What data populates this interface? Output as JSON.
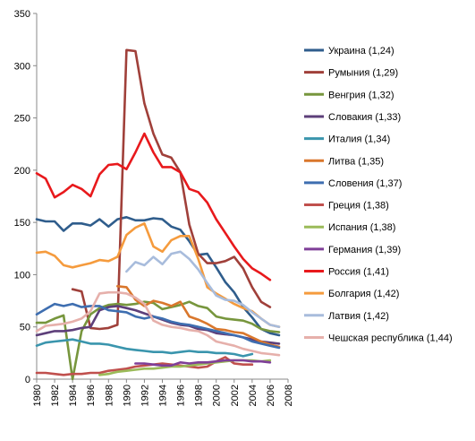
{
  "chart_data": {
    "type": "line",
    "title": "",
    "xlabel": "",
    "ylabel": "",
    "xlim": [
      1980,
      2008
    ],
    "ylim": [
      0,
      350
    ],
    "x_ticks": [
      "1980",
      "1982",
      "1984",
      "1986",
      "1988",
      "1990",
      "1992",
      "1994",
      "1996",
      "1998",
      "2000",
      "2002",
      "2004",
      "2006",
      "2008"
    ],
    "y_ticks": [
      "0",
      "50",
      "100",
      "150",
      "200",
      "250",
      "300",
      "350"
    ],
    "grid": false,
    "legend_position": "right",
    "series": [
      {
        "name": "Украина (1,24)",
        "color": "#2f5d8c",
        "x": [
          1980,
          1981,
          1982,
          1983,
          1984,
          1985,
          1986,
          1987,
          1988,
          1989,
          1990,
          1991,
          1992,
          1993,
          1994,
          1995,
          1996,
          1997,
          1998,
          1999,
          2000,
          2001,
          2002,
          2003,
          2004,
          2005,
          2006,
          2007
        ],
        "y": [
          153,
          151,
          151,
          142,
          149,
          149,
          147,
          153,
          146,
          153,
          155,
          152,
          152,
          154,
          153,
          146,
          143,
          132,
          119,
          120,
          107,
          93,
          83,
          69,
          59,
          48,
          44,
          42
        ]
      },
      {
        "name": "Румыния (1,29)",
        "color": "#a0403a",
        "x": [
          1984,
          1985,
          1986,
          1987,
          1988,
          1989,
          1990,
          1991,
          1992,
          1993,
          1994,
          1995,
          1996,
          1997,
          1998,
          1999,
          2000,
          2001,
          2002,
          2003,
          2004,
          2005,
          2006,
          2007
        ],
        "y": [
          86,
          84,
          49,
          48,
          49,
          52,
          315,
          314,
          264,
          235,
          215,
          212,
          198,
          148,
          120,
          111,
          111,
          113,
          117,
          106,
          88,
          74,
          69,
          null
        ]
      },
      {
        "name": "Венгрия (1,32)",
        "color": "#77963d",
        "x": [
          1980,
          1981,
          1982,
          1983,
          1984,
          1985,
          1986,
          1987,
          1988,
          1989,
          1990,
          1991,
          1992,
          1993,
          1994,
          1995,
          1996,
          1997,
          1998,
          1999,
          2000,
          2001,
          2002,
          2003,
          2004,
          2005,
          2006,
          2007
        ],
        "y": [
          54,
          54,
          58,
          61,
          0,
          46,
          62,
          68,
          71,
          72,
          71,
          72,
          74,
          73,
          67,
          69,
          71,
          74,
          70,
          68,
          60,
          58,
          57,
          56,
          53,
          48,
          46,
          45
        ]
      },
      {
        "name": "Словакия (1,33)",
        "color": "#5d3f7a",
        "x": [
          1980,
          1981,
          1982,
          1983,
          1984,
          1985,
          1986,
          1987,
          1988,
          1989,
          1990,
          1991,
          1992,
          1993,
          1994,
          1995,
          1996,
          1997,
          1998,
          1999,
          2000,
          2001,
          2002,
          2003,
          2004,
          2005,
          2006,
          2007
        ],
        "y": [
          42,
          44,
          46,
          46,
          47,
          49,
          50,
          66,
          69,
          70,
          68,
          66,
          63,
          60,
          57,
          54,
          52,
          51,
          48,
          47,
          44,
          43,
          42,
          40,
          38,
          36,
          35,
          34
        ]
      },
      {
        "name": "Италия (1,34)",
        "color": "#3a95ad",
        "x": [
          1980,
          1981,
          1982,
          1983,
          1984,
          1985,
          1986,
          1987,
          1988,
          1989,
          1990,
          1991,
          1992,
          1993,
          1994,
          1995,
          1996,
          1997,
          1998,
          1999,
          2000,
          2001,
          2002,
          2003,
          2004
        ],
        "y": [
          32,
          35,
          36,
          37,
          38,
          36,
          34,
          34,
          33,
          31,
          29,
          28,
          27,
          26,
          26,
          25,
          26,
          27,
          26,
          26,
          25,
          25,
          24,
          22,
          24
        ]
      },
      {
        "name": "Литва (1,35)",
        "color": "#d9772c",
        "x": [
          1989,
          1990,
          1991,
          1992,
          1993,
          1994,
          1995,
          1996,
          1997,
          1998,
          1999,
          2000,
          2001,
          2002,
          2003,
          2004,
          2005,
          2006,
          2007
        ],
        "y": [
          89,
          88,
          76,
          70,
          75,
          73,
          70,
          74,
          60,
          57,
          53,
          48,
          47,
          45,
          44,
          40,
          36,
          33,
          31
        ]
      },
      {
        "name": "Словения (1,37)",
        "color": "#3e6eb0",
        "x": [
          1980,
          1981,
          1982,
          1983,
          1984,
          1985,
          1986,
          1987,
          1988,
          1989,
          1990,
          1991,
          1992,
          1993,
          1994,
          1995,
          1996,
          1997,
          1998,
          1999,
          2000,
          2001,
          2002,
          2003,
          2004,
          2005,
          2006,
          2007
        ],
        "y": [
          62,
          67,
          72,
          70,
          72,
          69,
          70,
          70,
          66,
          65,
          64,
          60,
          58,
          60,
          58,
          55,
          53,
          52,
          50,
          48,
          46,
          44,
          42,
          40,
          36,
          34,
          32,
          30
        ]
      },
      {
        "name": "Греция (1,38)",
        "color": "#c0504d",
        "x": [
          1980,
          1981,
          1982,
          1983,
          1984,
          1985,
          1986,
          1987,
          1988,
          1989,
          1990,
          1991,
          1992,
          1993,
          1994,
          1995,
          1996,
          1997,
          1998,
          1999,
          2000,
          2001,
          2002,
          2003,
          2004
        ],
        "y": [
          6,
          6,
          5,
          4,
          5,
          5,
          6,
          6,
          8,
          9,
          10,
          12,
          13,
          14,
          15,
          14,
          13,
          12,
          11,
          12,
          17,
          21,
          15,
          14,
          14
        ]
      },
      {
        "name": "Испания (1,38)",
        "color": "#9bbb59",
        "x": [
          1987,
          1988,
          1989,
          1990,
          1991,
          1992,
          1993,
          1994,
          1995,
          1996,
          1997,
          1998,
          1999,
          2000,
          2001,
          2002,
          2003,
          2004,
          2005,
          2006
        ],
        "y": [
          4,
          5,
          7,
          8,
          9,
          10,
          10,
          11,
          12,
          12,
          13,
          14,
          15,
          16,
          17,
          18,
          18,
          18,
          17,
          18
        ]
      },
      {
        "name": "Германия (1,39)",
        "color": "#7f3f98",
        "x": [
          1991,
          1992,
          1993,
          1994,
          1995,
          1996,
          1997,
          1998,
          1999,
          2000,
          2001,
          2002,
          2003,
          2004,
          2005,
          2006
        ],
        "y": [
          15,
          15,
          14,
          13,
          13,
          16,
          15,
          16,
          16,
          17,
          18,
          18,
          18,
          17,
          17,
          16
        ]
      },
      {
        "name": "Россия  (1,41)",
        "color": "#e8191c",
        "x": [
          1980,
          1981,
          1982,
          1983,
          1984,
          1985,
          1986,
          1987,
          1988,
          1989,
          1990,
          1991,
          1992,
          1993,
          1994,
          1995,
          1996,
          1997,
          1998,
          1999,
          2000,
          2001,
          2002,
          2003,
          2004,
          2005,
          2006
        ],
        "y": [
          197,
          192,
          174,
          179,
          186,
          182,
          175,
          196,
          205,
          206,
          201,
          217,
          235,
          217,
          203,
          203,
          198,
          182,
          179,
          169,
          153,
          140,
          127,
          115,
          106,
          101,
          95
        ]
      },
      {
        "name": "Болгария (1,42)",
        "color": "#f59b3d",
        "x": [
          1980,
          1981,
          1982,
          1983,
          1984,
          1985,
          1986,
          1987,
          1988,
          1989,
          1990,
          1991,
          1992,
          1993,
          1994,
          1995,
          1996,
          1997,
          1998,
          1999,
          2000,
          2001,
          2002,
          2003,
          2004,
          2005,
          2006,
          2007
        ],
        "y": [
          121,
          122,
          118,
          109,
          107,
          109,
          111,
          114,
          113,
          117,
          138,
          145,
          149,
          127,
          122,
          133,
          137,
          137,
          115,
          88,
          82,
          77,
          72,
          68,
          65,
          58,
          52,
          50
        ]
      },
      {
        "name": "Латвия (1,42)",
        "color": "#a8bcdc",
        "x": [
          1990,
          1991,
          1992,
          1993,
          1994,
          1995,
          1996,
          1997,
          1998,
          1999,
          2000,
          2001,
          2002,
          2003,
          2004,
          2005,
          2006,
          2007
        ],
        "y": [
          103,
          112,
          109,
          117,
          110,
          120,
          122,
          115,
          105,
          92,
          80,
          76,
          75,
          71,
          64,
          58,
          52,
          50
        ]
      },
      {
        "name": "Чешская республика (1,44)",
        "color": "#e6b0ab",
        "x": [
          1980,
          1981,
          1982,
          1983,
          1984,
          1985,
          1986,
          1987,
          1988,
          1989,
          1990,
          1991,
          1992,
          1993,
          1994,
          1995,
          1996,
          1997,
          1998,
          1999,
          2000,
          2001,
          2002,
          2003,
          2004,
          2005,
          2006,
          2007
        ],
        "y": [
          46,
          51,
          52,
          53,
          55,
          58,
          65,
          82,
          83,
          83,
          82,
          78,
          72,
          56,
          52,
          50,
          49,
          47,
          46,
          42,
          36,
          34,
          32,
          29,
          27,
          25,
          24,
          23
        ]
      }
    ]
  }
}
